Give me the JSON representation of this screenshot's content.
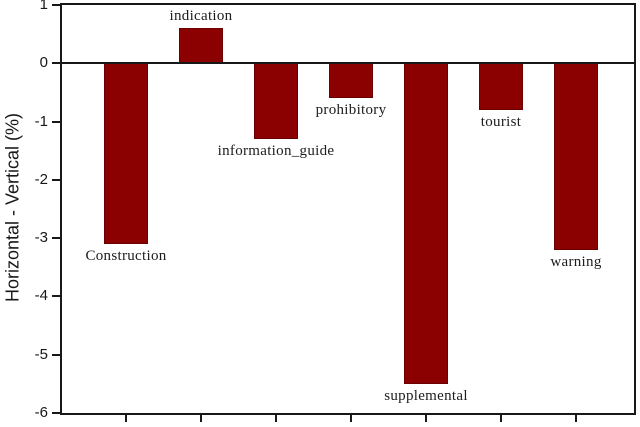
{
  "chart_data": {
    "type": "bar",
    "title": "",
    "xlabel": "",
    "ylabel": "Horizontal - Vertical (%)",
    "ylim": [
      -6,
      1
    ],
    "yticks": [
      1,
      0,
      -1,
      -2,
      -3,
      -4,
      -5,
      -6
    ],
    "categories": [
      "Construction",
      "indication",
      "information_guide",
      "prohibitory",
      "supplemental",
      "tourist",
      "warning"
    ],
    "values": [
      -3.1,
      0.6,
      -1.3,
      -0.6,
      -5.5,
      -0.8,
      -3.2
    ],
    "bar_color": "#8b0000",
    "bar_edge_color": "#6b0000",
    "axis_color": "#181818",
    "grid": false,
    "legend_position": "none",
    "bar_label_position": "outside-end"
  }
}
